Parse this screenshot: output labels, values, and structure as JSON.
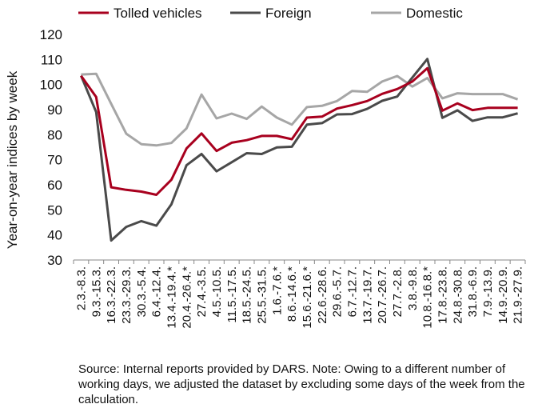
{
  "chart_data": {
    "type": "line",
    "ylabel": "Year-on-year indices by week",
    "xlabel": "",
    "ylim": [
      30,
      120
    ],
    "yticks": [
      30,
      40,
      50,
      60,
      70,
      80,
      90,
      100,
      110,
      120
    ],
    "grid": false,
    "legend_position": "top",
    "categories": [
      "2.3.-8.3.",
      "9.3.-15.3.",
      "16.3.-22.3.",
      "23.3.-29.3.",
      "30.3.-5.4.",
      "6.4.-12.4.",
      "13.4.-19.4.*",
      "20.4.-26.4.*",
      "27.4.-3.5.",
      "4.5.-10.5.",
      "11.5.-17.5.",
      "18.5.-24.5.",
      "25.5.-31.5.",
      "1.6.-7.6.*",
      "8.6.-14.6.*",
      "15.6.-21.6.*",
      "22.6.-28.6.",
      "29.6.-5.7.",
      "6.7.-12.7.",
      "13.7.-19.7.",
      "20.7.-26.7.",
      "27.7.-2.8.",
      "3.8.-9.8.",
      "10.8.-16.8.*",
      "17.8.-23.8.",
      "24.8.-30.8.",
      "31.8.-6.9.",
      "7.9.-13.9.",
      "14.9.-20.9.",
      "21.9.-27.9."
    ],
    "series": [
      {
        "name": "Tolled vehicles",
        "color": "#a8001e",
        "values": [
          103.5,
          95,
          59,
          58,
          57.3,
          56,
          62,
          74.5,
          80.5,
          73.5,
          76.8,
          77.8,
          79.5,
          79.5,
          78.2,
          86.8,
          87.2,
          90.4,
          91.8,
          93.4,
          96.3,
          98.2,
          101.2,
          106.5,
          89.6,
          92.5,
          89.8,
          90.7,
          90.7,
          90.7
        ]
      },
      {
        "name": "Foreign",
        "color": "#4a4a4a",
        "values": [
          103.5,
          89,
          37.8,
          43.2,
          45.5,
          43.7,
          52.2,
          67.8,
          72.3,
          65.4,
          69,
          72.6,
          72.3,
          74.9,
          75.2,
          84,
          84.6,
          88.1,
          88.2,
          90.3,
          93.5,
          95.2,
          102.8,
          110.2,
          86.7,
          89.7,
          85.5,
          86.9,
          86.9,
          88.5
        ]
      },
      {
        "name": "Domestic",
        "color": "#a6a6a6",
        "values": [
          104,
          104.3,
          92.3,
          80.4,
          76.2,
          75.7,
          76.7,
          82.5,
          96,
          86.5,
          88.4,
          86.3,
          91.2,
          86.8,
          84,
          91,
          91.5,
          93.4,
          97.4,
          97.1,
          101.2,
          103.4,
          99.2,
          102.6,
          94.5,
          96.5,
          96.2,
          96.2,
          96.2,
          94.1
        ]
      }
    ]
  },
  "note": "Source: Internal reports provided by DARS. Note: Owing to a different number of working days, we adjusted the dataset by excluding some days of the week from the calculation."
}
